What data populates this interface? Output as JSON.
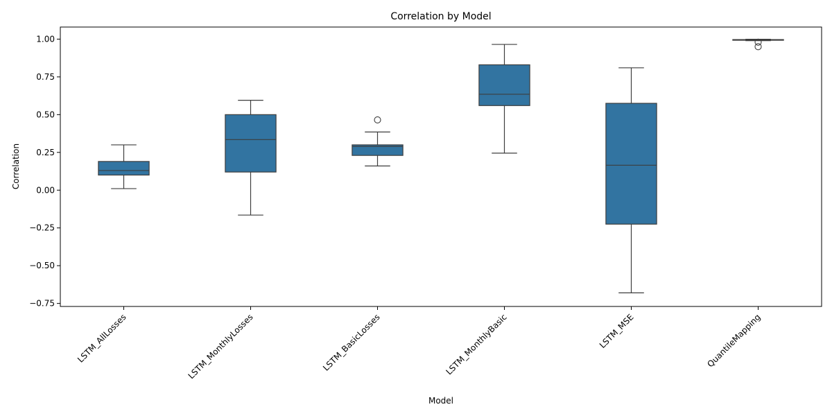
{
  "chart_data": {
    "type": "box",
    "title": "Correlation by Model",
    "xlabel": "Model",
    "ylabel": "Correlation",
    "ylim": [
      -0.77,
      1.08
    ],
    "yticks": [
      -0.75,
      -0.5,
      -0.25,
      0.0,
      0.25,
      0.5,
      0.75,
      1.0
    ],
    "ytick_labels": [
      "−0.75",
      "−0.50",
      "−0.25",
      "0.00",
      "0.25",
      "0.50",
      "0.75",
      "1.00"
    ],
    "box_color": "#3274a1",
    "line_color": "#3d3d3d",
    "grid": false,
    "categories": [
      "LSTM_AllLosses",
      "LSTM_MonthlyLosses",
      "LSTM_BasicLosses",
      "LSTM_MonthlyBasic",
      "LSTM_MSE",
      "QuantileMapping"
    ],
    "boxes": [
      {
        "category": "LSTM_AllLosses",
        "whisker_low": 0.01,
        "q1": 0.1,
        "median": 0.13,
        "q3": 0.19,
        "whisker_high": 0.3,
        "outliers": []
      },
      {
        "category": "LSTM_MonthlyLosses",
        "whisker_low": -0.165,
        "q1": 0.12,
        "median": 0.335,
        "q3": 0.5,
        "whisker_high": 0.595,
        "outliers": []
      },
      {
        "category": "LSTM_BasicLosses",
        "whisker_low": 0.16,
        "q1": 0.23,
        "median": 0.29,
        "q3": 0.3,
        "whisker_high": 0.385,
        "outliers": [
          0.465
        ]
      },
      {
        "category": "LSTM_MonthlyBasic",
        "whisker_low": 0.245,
        "q1": 0.56,
        "median": 0.635,
        "q3": 0.83,
        "whisker_high": 0.965,
        "outliers": []
      },
      {
        "category": "LSTM_MSE",
        "whisker_low": -0.68,
        "q1": -0.225,
        "median": 0.165,
        "q3": 0.575,
        "whisker_high": 0.81,
        "outliers": []
      },
      {
        "category": "QuantileMapping",
        "whisker_low": 0.99,
        "q1": 0.993,
        "median": 0.995,
        "q3": 0.997,
        "whisker_high": 0.999,
        "outliers": [
          0.98,
          0.95
        ]
      }
    ]
  }
}
